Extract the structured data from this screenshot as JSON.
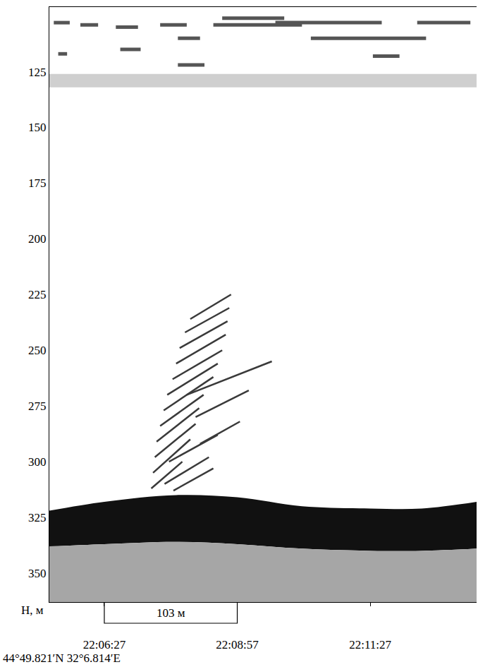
{
  "chart_data": {
    "type": "echogram",
    "y_label": "H, м",
    "xlim": [
      "22:05:25",
      "22:13:27"
    ],
    "xticks": [
      "22:06:27",
      "22:08:57",
      "22:11:27"
    ],
    "ylim": [
      96,
      363
    ],
    "yticks": [
      125,
      150,
      175,
      200,
      225,
      250,
      275,
      300,
      325,
      350
    ],
    "grid": false,
    "location": "44°49.821′N 32°6.814′E",
    "scale_bar": {
      "x": [
        "22:06:27",
        "22:08:57"
      ],
      "label": "103 м"
    },
    "bottom": {
      "x": [
        "22:05:25",
        "22:06:27",
        "22:07:48",
        "22:08:57",
        "22:10:10",
        "22:11:27",
        "22:12:25",
        "22:13:27"
      ],
      "top": [
        322,
        318,
        315,
        316,
        320,
        321,
        321,
        318
      ],
      "base": [
        338,
        337,
        336,
        337,
        339,
        340,
        340,
        339
      ],
      "color": "#111111",
      "sediment_color": "#a6a6a6"
    },
    "scattering_layer": {
      "top": 126,
      "base": 132,
      "color": "#cfcfcf"
    },
    "surface_echoes": {
      "color": "#555555",
      "segments": [
        {
          "x": [
            "22:05:30",
            "22:05:48"
          ],
          "y": [
            103,
            103
          ]
        },
        {
          "x": [
            "22:05:35",
            "22:05:45"
          ],
          "y": [
            117,
            117
          ]
        },
        {
          "x": [
            "22:06:00",
            "22:06:20"
          ],
          "y": [
            104,
            104
          ]
        },
        {
          "x": [
            "22:06:40",
            "22:07:05"
          ],
          "y": [
            105,
            105
          ]
        },
        {
          "x": [
            "22:06:45",
            "22:07:08"
          ],
          "y": [
            115,
            115
          ]
        },
        {
          "x": [
            "22:07:30",
            "22:08:00"
          ],
          "y": [
            104,
            104
          ]
        },
        {
          "x": [
            "22:07:50",
            "22:08:15"
          ],
          "y": [
            110,
            110
          ]
        },
        {
          "x": [
            "22:08:40",
            "22:09:50"
          ],
          "y": [
            101,
            101
          ]
        },
        {
          "x": [
            "22:08:30",
            "22:10:10"
          ],
          "y": [
            104,
            104
          ]
        },
        {
          "x": [
            "22:09:40",
            "22:11:40"
          ],
          "y": [
            103,
            103
          ]
        },
        {
          "x": [
            "22:10:20",
            "22:12:30"
          ],
          "y": [
            110,
            110
          ]
        },
        {
          "x": [
            "22:12:20",
            "22:13:20"
          ],
          "y": [
            103,
            103
          ]
        },
        {
          "x": [
            "22:07:50",
            "22:08:20"
          ],
          "y": [
            122,
            122
          ]
        },
        {
          "x": [
            "22:11:30",
            "22:12:00"
          ],
          "y": [
            118,
            118
          ]
        }
      ]
    },
    "school_echoes": {
      "color": "#3a3a3a",
      "segments": [
        {
          "x": [
            "22:07:20",
            "22:07:55"
          ],
          "y": [
            312,
            300
          ]
        },
        {
          "x": [
            "22:07:22",
            "22:08:04"
          ],
          "y": [
            305,
            290
          ]
        },
        {
          "x": [
            "22:07:24",
            "22:08:10"
          ],
          "y": [
            298,
            283
          ]
        },
        {
          "x": [
            "22:07:26",
            "22:08:14"
          ],
          "y": [
            291,
            276
          ]
        },
        {
          "x": [
            "22:07:30",
            "22:08:19"
          ],
          "y": [
            284,
            270
          ]
        },
        {
          "x": [
            "22:07:34",
            "22:08:30"
          ],
          "y": [
            277,
            262
          ]
        },
        {
          "x": [
            "22:07:38",
            "22:08:35"
          ],
          "y": [
            270,
            256
          ]
        },
        {
          "x": [
            "22:07:44",
            "22:08:40"
          ],
          "y": [
            263,
            250
          ]
        },
        {
          "x": [
            "22:07:48",
            "22:08:44"
          ],
          "y": [
            256,
            243
          ]
        },
        {
          "x": [
            "22:07:52",
            "22:08:46"
          ],
          "y": [
            249,
            237
          ]
        },
        {
          "x": [
            "22:07:58",
            "22:08:48"
          ],
          "y": [
            242,
            231
          ]
        },
        {
          "x": [
            "22:08:04",
            "22:08:50"
          ],
          "y": [
            236,
            225
          ]
        },
        {
          "x": [
            "22:08:00",
            "22:09:36"
          ],
          "y": [
            270,
            255
          ]
        },
        {
          "x": [
            "22:08:10",
            "22:09:10"
          ],
          "y": [
            280,
            268
          ]
        },
        {
          "x": [
            "22:07:40",
            "22:08:35"
          ],
          "y": [
            300,
            288
          ]
        },
        {
          "x": [
            "22:07:35",
            "22:08:25"
          ],
          "y": [
            310,
            298
          ]
        },
        {
          "x": [
            "22:08:15",
            "22:09:00"
          ],
          "y": [
            292,
            282
          ]
        },
        {
          "x": [
            "22:07:45",
            "22:08:30"
          ],
          "y": [
            313,
            303
          ]
        }
      ]
    }
  }
}
